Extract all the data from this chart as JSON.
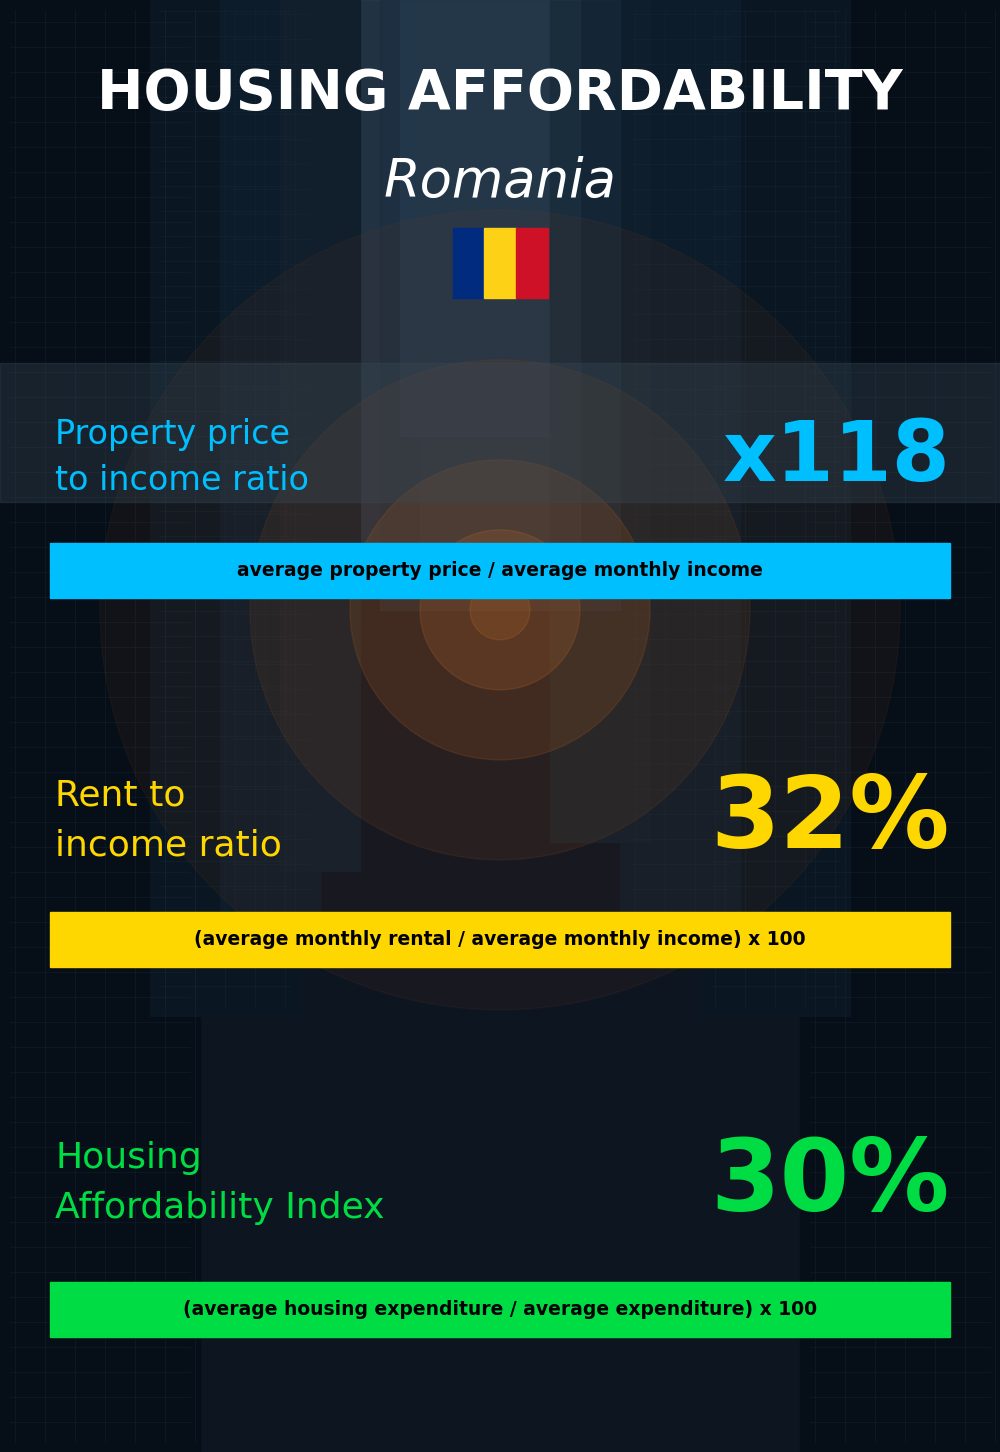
{
  "title_line1": "HOUSING AFFORDABILITY",
  "title_line2": "Romania",
  "background_color": "#0d1520",
  "title1_color": "#ffffff",
  "title2_color": "#ffffff",
  "flag_colors": [
    "#002B7F",
    "#FCD116",
    "#CE1126"
  ],
  "section1_label": "Property price\nto income ratio",
  "section1_value": "x118",
  "section1_label_color": "#00BFFF",
  "section1_value_color": "#00BFFF",
  "section1_formula": "average property price / average monthly income",
  "section1_formula_bg": "#00BFFF",
  "section1_formula_color": "#000000",
  "section2_label": "Rent to\nincome ratio",
  "section2_value": "32%",
  "section2_label_color": "#FFD700",
  "section2_value_color": "#FFD700",
  "section2_formula": "(average monthly rental / average monthly income) x 100",
  "section2_formula_bg": "#FFD700",
  "section2_formula_color": "#000000",
  "section3_label": "Housing\nAffordability Index",
  "section3_value": "30%",
  "section3_label_color": "#00DD44",
  "section3_value_color": "#00DD44",
  "section3_formula": "(average housing expenditure / average expenditure) x 100",
  "section3_formula_bg": "#00DD44",
  "section3_formula_color": "#000000"
}
